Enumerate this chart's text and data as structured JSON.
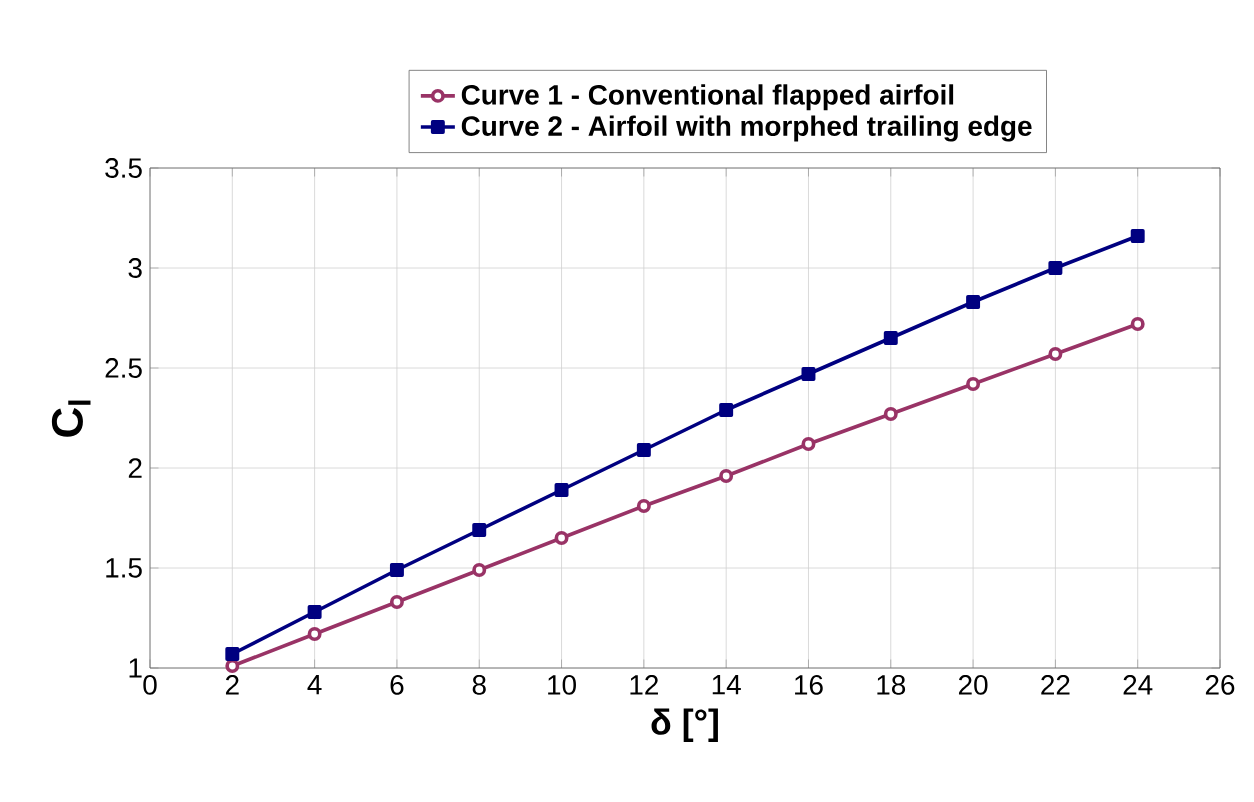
{
  "chart_data": {
    "type": "line",
    "xlabel": "δ [°]",
    "ylabel": "C$_{l}$",
    "xlim": [
      0,
      26
    ],
    "xticks": [
      0,
      2,
      4,
      6,
      8,
      10,
      12,
      14,
      16,
      18,
      20,
      22,
      24,
      26
    ],
    "ylim": [
      1,
      3.5
    ],
    "yticks": [
      1,
      1.5,
      2,
      2.5,
      3,
      3.5
    ],
    "grid": true,
    "legend": "top",
    "line_style": "solid",
    "x": [
      2,
      4,
      6,
      8,
      10,
      12,
      14,
      16,
      18,
      20,
      22,
      24
    ],
    "series": [
      {
        "name": "Curve 1 - Conventional flapped airfoil",
        "color": "#993366",
        "marker": "circle",
        "values": [
          1.01,
          1.17,
          1.33,
          1.49,
          1.65,
          1.81,
          1.96,
          2.12,
          2.27,
          2.42,
          2.57,
          2.72
        ]
      },
      {
        "name": "Curve 2 - Airfoil with morphed trailing edge",
        "color": "#000080",
        "marker": "square",
        "values": [
          1.07,
          1.28,
          1.49,
          1.69,
          1.89,
          2.09,
          2.29,
          2.47,
          2.65,
          2.83,
          3.0,
          3.16
        ]
      }
    ]
  }
}
